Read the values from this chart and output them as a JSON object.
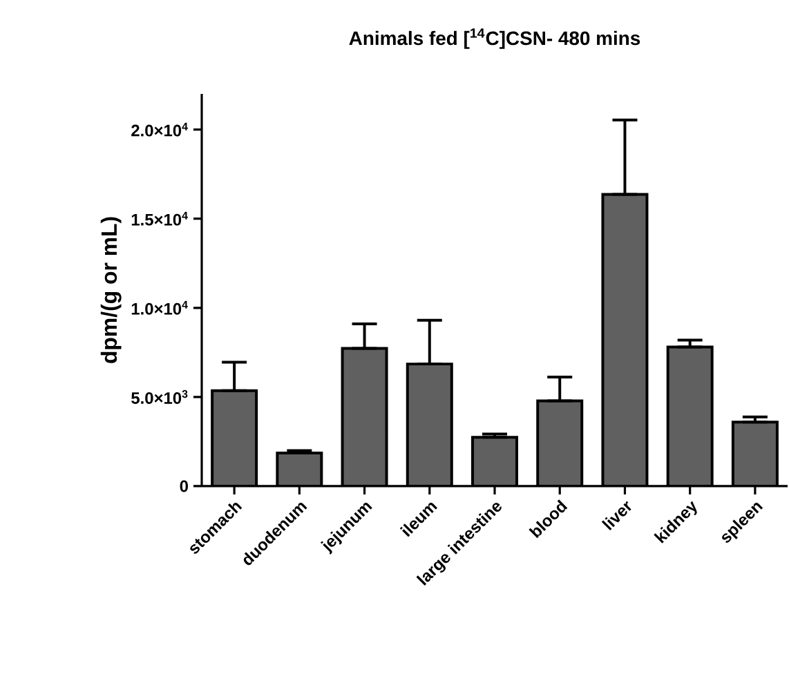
{
  "chart_data": {
    "type": "bar",
    "title": "Animals fed [$^{14}$C]CSN- 480 mins",
    "ylabel": "dpm/(g or mL)",
    "categories": [
      "stomach",
      "duodenum",
      "jejunum",
      "ileum",
      "large intestine",
      "blood",
      "liver",
      "kidney",
      "spleen"
    ],
    "values": [
      5350,
      1860,
      7730,
      6850,
      2740,
      4780,
      16360,
      7800,
      3590
    ],
    "errors": [
      [
        5350,
        6950
      ],
      [
        1860,
        1990
      ],
      [
        7730,
        9100
      ],
      [
        6850,
        9300
      ],
      [
        2740,
        2920
      ],
      [
        4780,
        6120
      ],
      [
        16360,
        20540
      ],
      [
        7800,
        8190
      ],
      [
        3590,
        3880
      ]
    ],
    "color": "#606060",
    "ylim": [
      0,
      22000
    ],
    "yticks": [
      0,
      {
        "value": 5000,
        "label": "5.0×10$^{3}$"
      },
      {
        "value": 10000,
        "label": "1.0×10$^{4}$"
      },
      {
        "value": 15000,
        "label": "1.5×10$^{4}$"
      },
      {
        "value": 20000,
        "label": "2.0×10$^{4}$"
      }
    ],
    "grid": false
  }
}
